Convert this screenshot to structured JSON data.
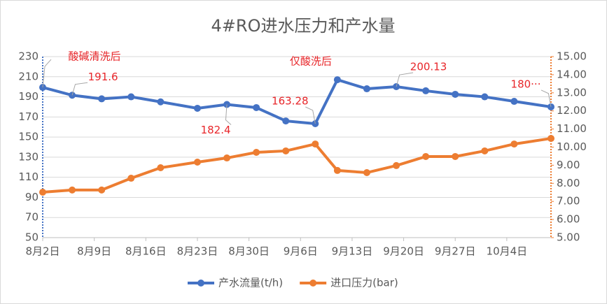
{
  "chart_data": {
    "type": "line",
    "title": "4#RO进水压力和产水量",
    "x": [
      "8月2日",
      "8月6日",
      "8月10日",
      "8月14日",
      "8月18日",
      "8月23日",
      "8月27日",
      "8月31日",
      "9月4日",
      "9月8日",
      "9月11日",
      "9月15日",
      "9月19日",
      "9月23日",
      "9月27日",
      "10月1日",
      "10月5日",
      "10月10日"
    ],
    "xlim": [
      "8月2日",
      "10月10日"
    ],
    "xticks": [
      "8月2日",
      "8月9日",
      "8月16日",
      "8月23日",
      "8月30日",
      "9月6日",
      "9月13日",
      "9月20日",
      "9月27日",
      "10月4日"
    ],
    "series": [
      {
        "name": "产水流量(t/h)",
        "color": "#4472c4",
        "axis": "y",
        "values": [
          199.4,
          191.6,
          188,
          190,
          185,
          178.6,
          182.4,
          179.3,
          166,
          163.28,
          207,
          198,
          200.13,
          196,
          192.5,
          190,
          185.5,
          180
        ],
        "value_labels": [
          null,
          "191.6",
          null,
          null,
          null,
          null,
          "182.4",
          null,
          null,
          "163.28",
          null,
          null,
          "200.13",
          null,
          null,
          null,
          null,
          "180···"
        ]
      },
      {
        "name": "进口压力(bar)",
        "color": "#ed7d31",
        "axis": "y2",
        "values": [
          7.51,
          7.63,
          7.63,
          8.28,
          8.86,
          9.17,
          9.4,
          9.71,
          9.79,
          10.17,
          8.71,
          8.59,
          8.98,
          9.48,
          9.48,
          9.79,
          10.17,
          10.48
        ]
      }
    ],
    "ylim": [
      50,
      230
    ],
    "yticks": [
      50,
      70,
      90,
      110,
      130,
      150,
      170,
      190,
      210,
      230
    ],
    "y2lim": [
      5,
      15
    ],
    "y2ticks": [
      {
        "value": 5,
        "label": "5.00"
      },
      {
        "value": 6,
        "label": "6.00"
      },
      {
        "value": 7,
        "label": "7.00"
      },
      {
        "value": 8,
        "label": "8.00"
      },
      {
        "value": 9,
        "label": "9.00"
      },
      {
        "value": 10,
        "label": "10.00"
      },
      {
        "value": 11,
        "label": "11.00"
      },
      {
        "value": 12,
        "label": "12.00"
      },
      {
        "value": 13,
        "label": "13.00"
      },
      {
        "value": 14,
        "label": "14.00"
      },
      {
        "value": 15,
        "label": "15.00"
      }
    ],
    "grid": true,
    "legend": "bottom",
    "annotations": [
      {
        "text": "酸碱清洗后",
        "index": 0
      },
      {
        "text": "仅酸洗后",
        "index": 10
      }
    ]
  }
}
